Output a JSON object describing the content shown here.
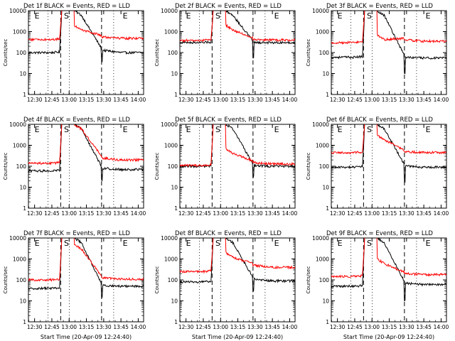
{
  "chart_data": [
    {
      "type": "line",
      "title": "Det 1f BLACK = Events, RED = LLD",
      "ylabel": "Counts/sec",
      "xlabel": "",
      "yscale": "log",
      "ylim": [
        1,
        10000
      ],
      "x_ticks": [
        "12:30",
        "12:45",
        "13:00",
        "13:15",
        "13:30",
        "13:45",
        "14:00"
      ],
      "region_labels": [
        "E",
        "S",
        "E"
      ],
      "series": [
        {
          "color": "#000000",
          "levels": {
            "pre": 100,
            "spike": 40,
            "peak": 10000,
            "decay_start": 10000,
            "after_event": 130,
            "post": 100
          }
        },
        {
          "color": "#ff0000",
          "levels": {
            "pre": 420,
            "spike": 0,
            "peak": 10000,
            "decay_start": 2000,
            "after_event": 550,
            "post": 480
          }
        }
      ]
    },
    {
      "type": "line",
      "title": "Det 2f BLACK = Events, RED = LLD",
      "ylabel": "Counts/sec",
      "xlabel": "",
      "yscale": "log",
      "ylim": [
        1,
        10000
      ],
      "x_ticks": [
        "12:30",
        "12:45",
        "13:00",
        "13:15",
        "13:30",
        "13:45",
        "14:00"
      ],
      "region_labels": [
        "E",
        "S",
        "E"
      ],
      "series": [
        {
          "color": "#000000",
          "levels": {
            "pre": 300,
            "spike": 60,
            "peak": 10000,
            "decay_start": 10000,
            "after_event": 300,
            "post": 300
          }
        },
        {
          "color": "#ff0000",
          "levels": {
            "pre": 380,
            "spike": 0,
            "peak": 10000,
            "decay_start": 2000,
            "after_event": 420,
            "post": 400
          }
        }
      ]
    },
    {
      "type": "line",
      "title": "Det 3f BLACK = Events, RED = LLD",
      "ylabel": "Counts/sec",
      "xlabel": "",
      "yscale": "log",
      "ylim": [
        1,
        10000
      ],
      "x_ticks": [
        "12:30",
        "12:45",
        "13:00",
        "13:15",
        "13:30",
        "13:45",
        "14:00"
      ],
      "region_labels": [
        "E",
        "S",
        "E"
      ],
      "series": [
        {
          "color": "#000000",
          "levels": {
            "pre": 60,
            "spike": 10,
            "peak": 10000,
            "decay_start": 10000,
            "after_event": 60,
            "post": 55
          }
        },
        {
          "color": "#ff0000",
          "levels": {
            "pre": 300,
            "spike": 0,
            "peak": 10000,
            "decay_start": 700,
            "after_event": 400,
            "post": 350
          }
        }
      ]
    },
    {
      "type": "line",
      "title": "Det 4f BLACK = Events, RED = LLD",
      "ylabel": "Counts/sec",
      "xlabel": "",
      "yscale": "log",
      "ylim": [
        1,
        10000
      ],
      "x_ticks": [
        "12:30",
        "12:45",
        "13:00",
        "13:15",
        "13:30",
        "13:45",
        "14:00"
      ],
      "region_labels": [
        "E",
        "S",
        "E"
      ],
      "series": [
        {
          "color": "#000000",
          "levels": {
            "pre": 60,
            "spike": 20,
            "peak": 10000,
            "decay_start": 10000,
            "after_event": 80,
            "post": 70
          }
        },
        {
          "color": "#ff0000",
          "levels": {
            "pre": 140,
            "spike": 0,
            "peak": 10000,
            "decay_start": 10000,
            "after_event": 250,
            "post": 200
          }
        }
      ]
    },
    {
      "type": "line",
      "title": "Det 5f BLACK = Events, RED = LLD",
      "ylabel": "Counts/sec",
      "xlabel": "",
      "yscale": "log",
      "ylim": [
        1,
        10000
      ],
      "x_ticks": [
        "12:30",
        "12:45",
        "13:00",
        "13:15",
        "13:30",
        "13:45",
        "14:00"
      ],
      "region_labels": [
        "E",
        "S",
        "E"
      ],
      "series": [
        {
          "color": "#000000",
          "levels": {
            "pre": 100,
            "spike": 30,
            "peak": 10000,
            "decay_start": 10000,
            "after_event": 110,
            "post": 100
          }
        },
        {
          "color": "#ff0000",
          "levels": {
            "pre": 110,
            "spike": 0,
            "peak": 10000,
            "decay_start": 700,
            "after_event": 150,
            "post": 130
          }
        }
      ]
    },
    {
      "type": "line",
      "title": "Det 6f BLACK = Events, RED = LLD",
      "ylabel": "Counts/sec",
      "xlabel": "",
      "yscale": "log",
      "ylim": [
        1,
        10000
      ],
      "x_ticks": [
        "12:30",
        "12:45",
        "13:00",
        "13:15",
        "13:30",
        "13:45",
        "14:00"
      ],
      "region_labels": [
        "E",
        "S",
        "E"
      ],
      "series": [
        {
          "color": "#000000",
          "levels": {
            "pre": 90,
            "spike": 20,
            "peak": 10000,
            "decay_start": 10000,
            "after_event": 100,
            "post": 90
          }
        },
        {
          "color": "#ff0000",
          "levels": {
            "pre": 450,
            "spike": 0,
            "peak": 10000,
            "decay_start": 3000,
            "after_event": 500,
            "post": 450
          }
        }
      ]
    },
    {
      "type": "line",
      "title": "Det 7f BLACK = Events, RED = LLD",
      "ylabel": "Counts/sec",
      "xlabel": "Start Time (20-Apr-09 12:24:40)",
      "yscale": "log",
      "ylim": [
        1,
        10000
      ],
      "x_ticks": [
        "12:30",
        "12:45",
        "13:00",
        "13:15",
        "13:30",
        "13:45",
        "14:00"
      ],
      "region_labels": [
        "E",
        "S",
        "E"
      ],
      "series": [
        {
          "color": "#000000",
          "levels": {
            "pre": 40,
            "spike": 15,
            "peak": 10000,
            "decay_start": 10000,
            "after_event": 55,
            "post": 50
          }
        },
        {
          "color": "#ff0000",
          "levels": {
            "pre": 100,
            "spike": 0,
            "peak": 10000,
            "decay_start": 5000,
            "after_event": 130,
            "post": 110
          }
        }
      ]
    },
    {
      "type": "line",
      "title": "Det 8f BLACK = Events, RED = LLD",
      "ylabel": "Counts/sec",
      "xlabel": "Start Time (20-Apr-09 12:24:40)",
      "yscale": "log",
      "ylim": [
        1,
        10000
      ],
      "x_ticks": [
        "12:30",
        "12:45",
        "13:00",
        "13:15",
        "13:30",
        "13:45",
        "14:00"
      ],
      "region_labels": [
        "E",
        "S",
        "E"
      ],
      "series": [
        {
          "color": "#000000",
          "levels": {
            "pre": 80,
            "spike": 30,
            "peak": 10000,
            "decay_start": 10000,
            "after_event": 110,
            "post": 90
          }
        },
        {
          "color": "#ff0000",
          "levels": {
            "pre": 250,
            "spike": 0,
            "peak": 10000,
            "decay_start": 2000,
            "after_event": 500,
            "post": 400
          }
        }
      ]
    },
    {
      "type": "line",
      "title": "Det 9f BLACK = Events, RED = LLD",
      "ylabel": "Counts/sec",
      "xlabel": "Start Time (20-Apr-09 12:24:40)",
      "yscale": "log",
      "ylim": [
        1,
        10000
      ],
      "x_ticks": [
        "12:30",
        "12:45",
        "13:00",
        "13:15",
        "13:30",
        "13:45",
        "14:00"
      ],
      "region_labels": [
        "E",
        "S",
        "E"
      ],
      "series": [
        {
          "color": "#000000",
          "levels": {
            "pre": 50,
            "spike": 10,
            "peak": 10000,
            "decay_start": 10000,
            "after_event": 70,
            "post": 60
          }
        },
        {
          "color": "#ff0000",
          "levels": {
            "pre": 150,
            "spike": 0,
            "peak": 10000,
            "decay_start": 1000,
            "after_event": 200,
            "post": 180
          }
        }
      ]
    }
  ]
}
